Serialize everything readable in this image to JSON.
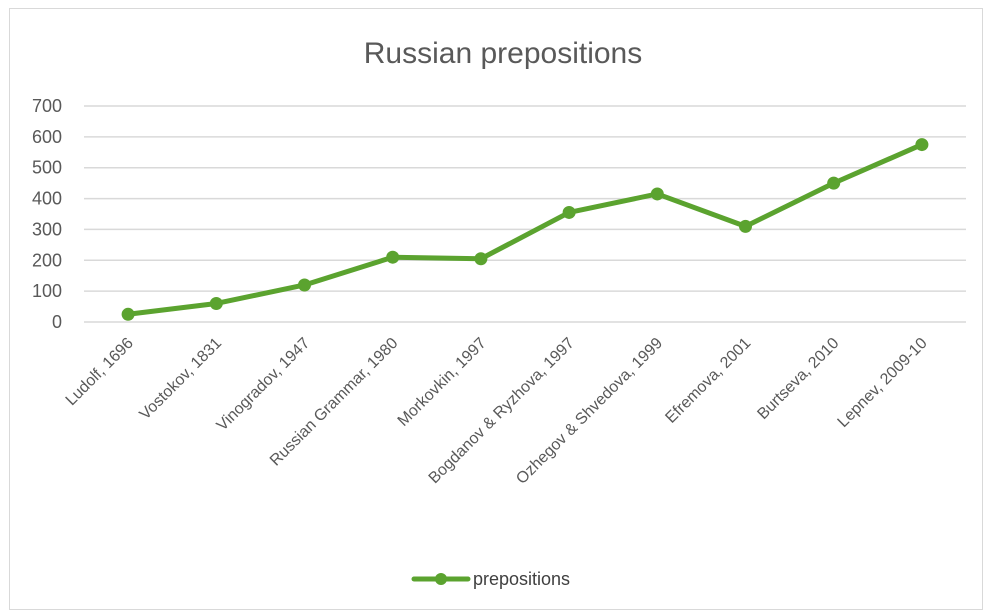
{
  "chart_data": {
    "type": "line",
    "title": "Russian prepositions",
    "xlabel": "",
    "ylabel": "",
    "categories": [
      "Ludolf, 1696",
      "Vostokov, 1831",
      "Vinogradov, 1947",
      "Russian Grammar, 1980",
      "Morkovkin, 1997",
      "Bogdanov & Ryzhova, 1997",
      "Ozhegov & Shvedova, 1999",
      "Efremova, 2001",
      "Burtseva, 2010",
      "Lepnev, 2009-10"
    ],
    "series": [
      {
        "name": "prepositions",
        "values": [
          25,
          60,
          120,
          210,
          205,
          355,
          415,
          310,
          450,
          575
        ]
      }
    ],
    "ylim": [
      0,
      700
    ],
    "yticks": [
      0,
      100,
      200,
      300,
      400,
      500,
      600,
      700
    ],
    "grid": true,
    "legend": "bottom",
    "colors": {
      "series": "#5ba32f",
      "grid": "#d9d9d9",
      "text": "#595959"
    }
  }
}
